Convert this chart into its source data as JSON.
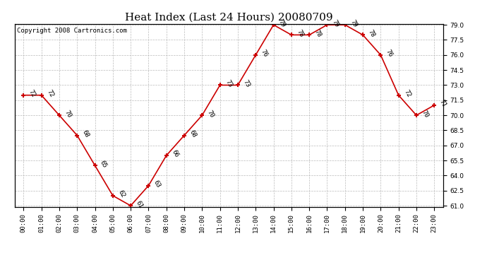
{
  "title": "Heat Index (Last 24 Hours) 20080709",
  "copyright": "Copyright 2008 Cartronics.com",
  "hours": [
    "00:00",
    "01:00",
    "02:00",
    "03:00",
    "04:00",
    "05:00",
    "06:00",
    "07:00",
    "08:00",
    "09:00",
    "10:00",
    "11:00",
    "12:00",
    "13:00",
    "14:00",
    "15:00",
    "16:00",
    "17:00",
    "18:00",
    "19:00",
    "20:00",
    "21:00",
    "22:00",
    "23:00"
  ],
  "values": [
    72,
    72,
    70,
    68,
    65,
    62,
    61,
    63,
    66,
    68,
    70,
    73,
    73,
    76,
    79,
    78,
    78,
    79,
    79,
    78,
    76,
    72,
    70,
    71
  ],
  "ylim_min": 61.0,
  "ylim_max": 79.0,
  "yticks": [
    61.0,
    62.5,
    64.0,
    65.5,
    67.0,
    68.5,
    70.0,
    71.5,
    73.0,
    74.5,
    76.0,
    77.5,
    79.0
  ],
  "line_color": "#cc0000",
  "marker_color": "#cc0000",
  "bg_color": "#ffffff",
  "grid_color": "#bbbbbb",
  "title_fontsize": 11,
  "label_fontsize": 6.5,
  "annotation_fontsize": 6.5,
  "copyright_fontsize": 6.5
}
